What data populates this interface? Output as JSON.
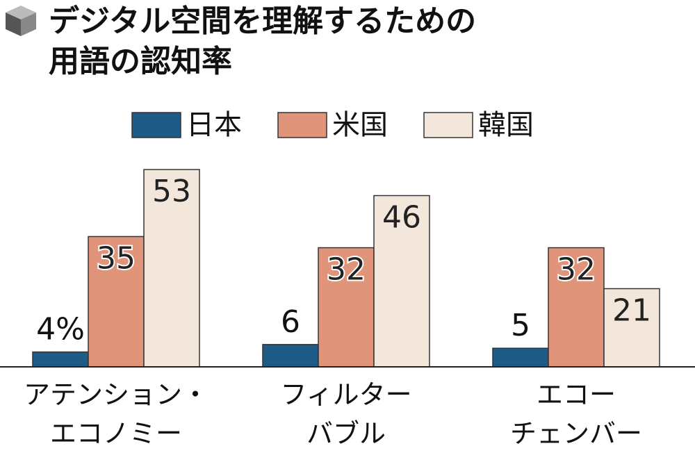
{
  "chart_data": {
    "type": "bar",
    "title": "デジタル空間を理解するための\n用語の認知率",
    "categories": [
      "アテンション・\nエコノミー",
      "フィルター\nバブル",
      "エコー\nチェンバー"
    ],
    "series": [
      {
        "name": "日本",
        "color": "#1f5b87",
        "values": [
          4,
          6,
          5
        ],
        "value_labels": [
          "4%",
          "6",
          "5"
        ]
      },
      {
        "name": "米国",
        "color": "#e0957b",
        "values": [
          35,
          32,
          32
        ]
      },
      {
        "name": "韓国",
        "color": "#f2e7da",
        "values": [
          53,
          46,
          21
        ]
      }
    ]
  }
}
